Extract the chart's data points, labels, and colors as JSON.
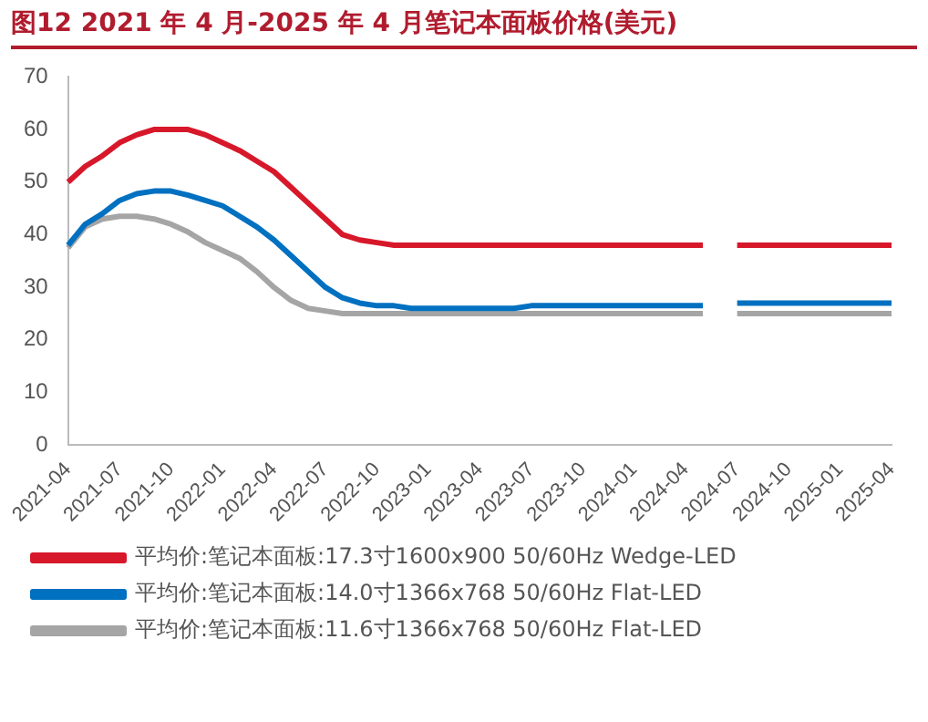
{
  "chart_data": {
    "type": "line",
    "title": "图12  2021 年 4 月-2025 年 4 月笔记本面板价格(美元)",
    "categories": [
      "2021-04",
      null,
      null,
      "2021-07",
      null,
      null,
      "2021-10",
      null,
      null,
      "2022-01",
      null,
      null,
      "2022-04",
      null,
      null,
      "2022-07",
      null,
      null,
      "2022-10",
      null,
      null,
      "2023-01",
      null,
      null,
      "2023-04",
      null,
      null,
      "2023-07",
      null,
      null,
      "2023-10",
      null,
      null,
      "2024-01",
      null,
      null,
      "2024-04",
      null,
      null,
      "2024-07",
      null,
      null,
      "2024-10",
      null,
      null,
      "2025-01",
      null,
      null,
      "2025-04"
    ],
    "series": [
      {
        "name": "平均价:笔记本面板:17.3寸1600x900 50/60Hz Wedge-LED",
        "color": "#d7182a",
        "values": [
          50,
          53,
          55,
          57.5,
          59,
          60,
          60,
          60,
          59,
          57.5,
          56,
          54,
          52,
          49,
          46,
          43,
          40,
          39,
          38.5,
          38,
          38,
          38,
          38,
          38,
          38,
          38,
          38,
          38,
          38,
          38,
          38,
          38,
          38,
          38,
          38,
          38,
          38,
          38,
          null,
          38,
          38,
          38,
          38,
          38,
          38,
          38,
          38,
          38,
          38
        ]
      },
      {
        "name": "平均价:笔记本面板:14.0寸1366x768 50/60Hz Flat-LED",
        "color": "#0070c0",
        "values": [
          38,
          42,
          44,
          46.5,
          47.8,
          48.3,
          48.3,
          47.5,
          46.5,
          45.5,
          43.5,
          41.5,
          39,
          36,
          33,
          30,
          28,
          27,
          26.5,
          26.5,
          26,
          26,
          26,
          26,
          26,
          26,
          26,
          26.5,
          26.5,
          26.5,
          26.5,
          26.5,
          26.5,
          26.5,
          26.5,
          26.5,
          26.5,
          26.5,
          null,
          27,
          27,
          27,
          27,
          27,
          27,
          27,
          27,
          27,
          27
        ]
      },
      {
        "name": "平均价:笔记本面板:11.6寸1366x768 50/60Hz Flat-LED",
        "color": "#a5a5a5",
        "values": [
          37.5,
          41.5,
          43,
          43.5,
          43.5,
          43,
          42,
          40.5,
          38.5,
          37,
          35.5,
          33,
          30,
          27.5,
          26,
          25.5,
          25,
          25,
          25,
          25,
          25,
          25,
          25,
          25,
          25,
          25,
          25,
          25,
          25,
          25,
          25,
          25,
          25,
          25,
          25,
          25,
          25,
          25,
          null,
          25,
          25,
          25,
          25,
          25,
          25,
          25,
          25,
          25,
          25
        ]
      }
    ],
    "ylim": [
      0,
      70
    ],
    "yticks": [
      0,
      10,
      20,
      30,
      40,
      50,
      60,
      70
    ],
    "grid": false,
    "legend": "bottom",
    "marker": "none",
    "line_style": "solid"
  }
}
